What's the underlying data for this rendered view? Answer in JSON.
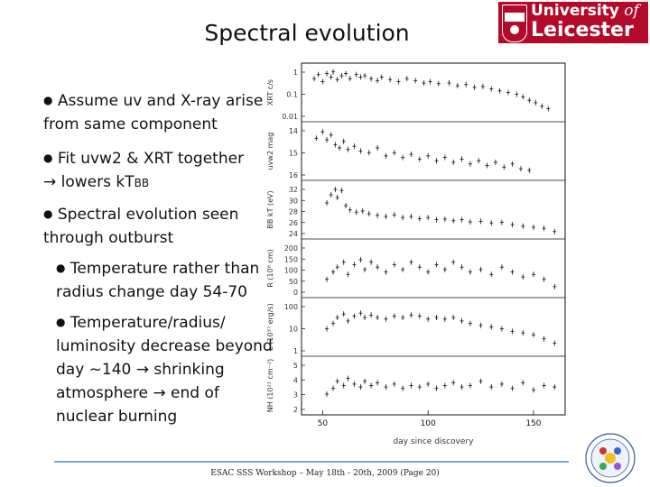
{
  "slide": {
    "title": "Spectral evolution",
    "logo": {
      "line1_a": "University",
      "line1_b": " of",
      "line2": "Leicester"
    },
    "bullets": {
      "b1_l1": "Assume uv and X-ray arise",
      "b1_l2": "from same component",
      "b2_l1": "Fit uvw2 & XRT together",
      "b2_l2_pre": "→ lowers kT",
      "b2_l2_sub": "BB",
      "b3_l1": "Spectral evolution seen",
      "b3_l2": "through outburst",
      "b4_l1": "Temperature rather than",
      "b4_l2": "radius change day 54-70",
      "b5_l1": "Temperature/radius/",
      "b5_l2": "luminosity decrease beyond",
      "b5_l3": "day ~140 → shrinking",
      "b5_l4": "atmosphere → end of",
      "b5_l5": "nuclear burning"
    },
    "footer": "ESAC SSS Workshop – May 18th - 20th, 2009 (Page 20)",
    "accent": "#7aa6d6",
    "brand_red": "#b30a2a"
  },
  "chart_data": {
    "type": "scatter",
    "xlabel": "day since discovery",
    "x_ticks": [
      "50",
      "100",
      "150"
    ],
    "xlim": [
      40,
      165
    ],
    "panels": [
      {
        "ylabel": "XRT c/s",
        "yticks": [
          "1",
          "0.1",
          "0.01"
        ],
        "log": true,
        "ylim": [
          0.005,
          2
        ]
      },
      {
        "ylabel": "uvw2 mag",
        "yticks": [
          "14",
          "15",
          "16"
        ],
        "ylim": [
          16.8,
          13.6
        ],
        "inverted": true
      },
      {
        "ylabel": "BB kT (eV)",
        "yticks": [
          "32",
          "30",
          "28",
          "26",
          "24"
        ],
        "ylim": [
          23.5,
          33
        ]
      },
      {
        "ylabel": "R (10⁸ cm)",
        "yticks": [
          "200",
          "150",
          "100",
          "50",
          "0"
        ],
        "ylim": [
          0,
          210
        ]
      },
      {
        "ylabel": "L (10³⁷ erg/s)",
        "yticks": [
          "100",
          "10",
          "1"
        ],
        "log": true,
        "ylim": [
          0.5,
          200
        ]
      },
      {
        "ylabel": "NH (10²¹ cm⁻²)",
        "yticks": [
          "5",
          "4",
          "3",
          "2"
        ],
        "ylim": [
          1.8,
          5.4
        ]
      }
    ],
    "series": [
      {
        "values": [
          [
            46,
            0.5
          ],
          [
            48,
            0.8
          ],
          [
            50,
            0.35
          ],
          [
            52,
            0.9
          ],
          [
            54,
            0.6
          ],
          [
            55,
            1.1
          ],
          [
            57,
            0.45
          ],
          [
            59,
            0.7
          ],
          [
            61,
            0.9
          ],
          [
            63,
            0.5
          ],
          [
            66,
            0.8
          ],
          [
            68,
            0.6
          ],
          [
            70,
            0.7
          ],
          [
            73,
            0.5
          ],
          [
            76,
            0.4
          ],
          [
            78,
            0.6
          ],
          [
            82,
            0.45
          ],
          [
            86,
            0.35
          ],
          [
            90,
            0.5
          ],
          [
            94,
            0.4
          ],
          [
            98,
            0.3
          ],
          [
            101,
            0.35
          ],
          [
            105,
            0.28
          ],
          [
            110,
            0.3
          ],
          [
            114,
            0.22
          ],
          [
            118,
            0.25
          ],
          [
            122,
            0.18
          ],
          [
            126,
            0.2
          ],
          [
            130,
            0.15
          ],
          [
            134,
            0.12
          ],
          [
            138,
            0.1
          ],
          [
            142,
            0.08
          ],
          [
            145,
            0.06
          ],
          [
            148,
            0.04
          ],
          [
            151,
            0.03
          ],
          [
            154,
            0.02
          ],
          [
            157,
            0.015
          ]
        ]
      },
      {
        "values": [
          [
            47,
            14.4
          ],
          [
            50,
            14.0
          ],
          [
            52,
            14.5
          ],
          [
            54,
            14.2
          ],
          [
            56,
            14.8
          ],
          [
            58,
            15.0
          ],
          [
            60,
            14.6
          ],
          [
            62,
            15.1
          ],
          [
            65,
            14.9
          ],
          [
            68,
            15.2
          ],
          [
            72,
            15.3
          ],
          [
            76,
            15.0
          ],
          [
            80,
            15.5
          ],
          [
            84,
            15.3
          ],
          [
            88,
            15.6
          ],
          [
            92,
            15.4
          ],
          [
            96,
            15.7
          ],
          [
            100,
            15.5
          ],
          [
            104,
            15.8
          ],
          [
            108,
            15.6
          ],
          [
            112,
            15.9
          ],
          [
            116,
            15.7
          ],
          [
            120,
            16.0
          ],
          [
            124,
            15.8
          ],
          [
            128,
            16.1
          ],
          [
            132,
            15.9
          ],
          [
            136,
            16.2
          ],
          [
            140,
            16.0
          ],
          [
            144,
            16.3
          ],
          [
            148,
            16.4
          ]
        ]
      },
      {
        "values": [
          [
            52,
            29.5
          ],
          [
            54,
            31.0
          ],
          [
            56,
            32.0
          ],
          [
            57,
            30.5
          ],
          [
            59,
            31.8
          ],
          [
            61,
            29.0
          ],
          [
            63,
            28.2
          ],
          [
            66,
            27.8
          ],
          [
            69,
            28.0
          ],
          [
            72,
            27.5
          ],
          [
            76,
            27.2
          ],
          [
            80,
            27.0
          ],
          [
            84,
            27.3
          ],
          [
            88,
            26.8
          ],
          [
            92,
            27.0
          ],
          [
            96,
            26.6
          ],
          [
            100,
            26.8
          ],
          [
            104,
            26.4
          ],
          [
            108,
            26.5
          ],
          [
            112,
            26.2
          ],
          [
            116,
            26.4
          ],
          [
            120,
            26.0
          ],
          [
            125,
            26.1
          ],
          [
            130,
            25.8
          ],
          [
            135,
            25.9
          ],
          [
            140,
            25.5
          ],
          [
            145,
            25.2
          ],
          [
            150,
            25.0
          ],
          [
            155,
            24.8
          ],
          [
            160,
            24.2
          ]
        ]
      },
      {
        "values": [
          [
            52,
            60
          ],
          [
            55,
            90
          ],
          [
            57,
            110
          ],
          [
            60,
            130
          ],
          [
            62,
            80
          ],
          [
            65,
            120
          ],
          [
            68,
            140
          ],
          [
            70,
            100
          ],
          [
            73,
            130
          ],
          [
            76,
            110
          ],
          [
            80,
            90
          ],
          [
            84,
            120
          ],
          [
            88,
            100
          ],
          [
            92,
            130
          ],
          [
            96,
            110
          ],
          [
            100,
            90
          ],
          [
            104,
            120
          ],
          [
            108,
            100
          ],
          [
            112,
            130
          ],
          [
            116,
            110
          ],
          [
            120,
            90
          ],
          [
            125,
            100
          ],
          [
            130,
            80
          ],
          [
            135,
            110
          ],
          [
            140,
            90
          ],
          [
            145,
            70
          ],
          [
            150,
            80
          ],
          [
            155,
            60
          ],
          [
            160,
            30
          ]
        ]
      },
      {
        "values": [
          [
            52,
            8
          ],
          [
            55,
            15
          ],
          [
            57,
            30
          ],
          [
            60,
            45
          ],
          [
            62,
            20
          ],
          [
            65,
            35
          ],
          [
            68,
            50
          ],
          [
            70,
            30
          ],
          [
            73,
            40
          ],
          [
            76,
            30
          ],
          [
            80,
            25
          ],
          [
            84,
            35
          ],
          [
            88,
            30
          ],
          [
            92,
            40
          ],
          [
            96,
            35
          ],
          [
            100,
            25
          ],
          [
            104,
            30
          ],
          [
            108,
            25
          ],
          [
            112,
            30
          ],
          [
            116,
            20
          ],
          [
            120,
            15
          ],
          [
            125,
            12
          ],
          [
            130,
            10
          ],
          [
            135,
            8
          ],
          [
            140,
            6
          ],
          [
            145,
            5
          ],
          [
            150,
            4
          ],
          [
            155,
            2.5
          ],
          [
            160,
            1.5
          ]
        ]
      },
      {
        "values": [
          [
            52,
            3.0
          ],
          [
            55,
            3.4
          ],
          [
            57,
            3.9
          ],
          [
            60,
            3.6
          ],
          [
            62,
            4.1
          ],
          [
            65,
            3.7
          ],
          [
            68,
            3.5
          ],
          [
            70,
            3.9
          ],
          [
            73,
            3.6
          ],
          [
            76,
            3.8
          ],
          [
            80,
            3.5
          ],
          [
            84,
            3.7
          ],
          [
            88,
            3.4
          ],
          [
            92,
            3.6
          ],
          [
            96,
            3.5
          ],
          [
            100,
            3.7
          ],
          [
            104,
            3.4
          ],
          [
            108,
            3.6
          ],
          [
            112,
            3.8
          ],
          [
            116,
            3.5
          ],
          [
            120,
            3.6
          ],
          [
            125,
            3.9
          ],
          [
            130,
            3.5
          ],
          [
            135,
            3.7
          ],
          [
            140,
            3.4
          ],
          [
            145,
            3.8
          ],
          [
            150,
            3.3
          ],
          [
            155,
            3.6
          ],
          [
            160,
            3.5
          ]
        ]
      }
    ]
  }
}
